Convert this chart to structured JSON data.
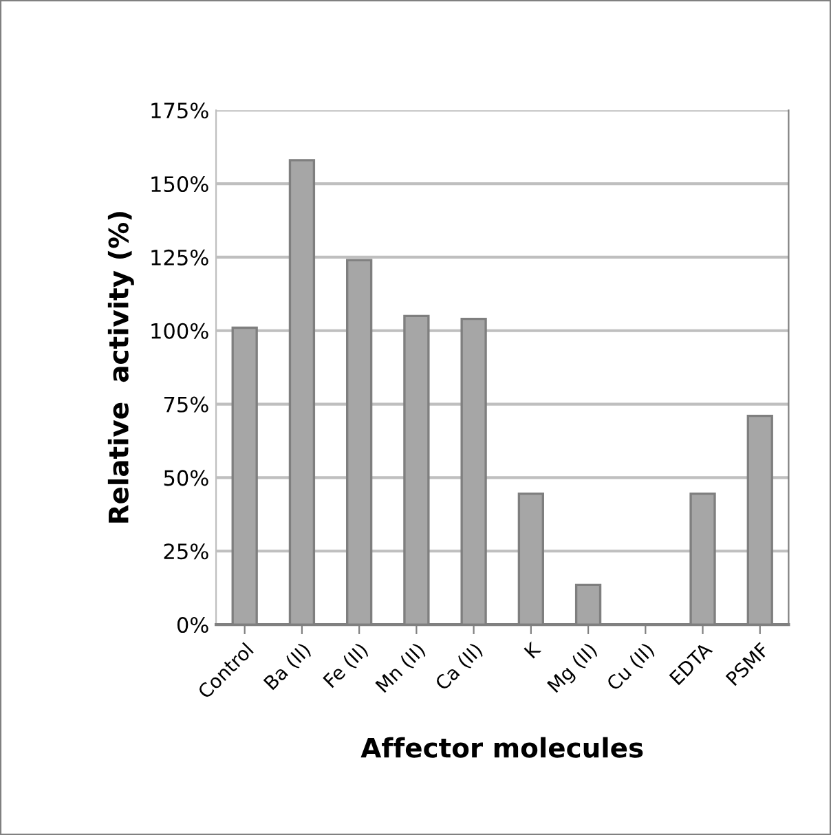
{
  "chart_data": {
    "type": "bar",
    "xlabel": "Affector molecules",
    "ylabel": "Relative  activity (%)",
    "categories": [
      "Control",
      "Ba (II)",
      "Fe (II)",
      "Mn (II)",
      "Ca (II)",
      "K",
      "Mg (II)",
      "Cu (II)",
      "EDTA",
      "PSMF"
    ],
    "values": [
      101,
      158,
      124,
      105,
      104,
      44.5,
      13.5,
      0,
      44.5,
      71
    ],
    "color": "#a6a6a6",
    "ylim": [
      0,
      175
    ],
    "yticks": [
      {
        "value": 0,
        "label": "0%"
      },
      {
        "value": 25,
        "label": "25%"
      },
      {
        "value": 50,
        "label": "50%"
      },
      {
        "value": 75,
        "label": "75%"
      },
      {
        "value": 100,
        "label": "100%"
      },
      {
        "value": 125,
        "label": "125%"
      },
      {
        "value": 150,
        "label": "150%"
      },
      {
        "value": 175,
        "label": "175%"
      }
    ],
    "grid": "y",
    "legend": false
  }
}
